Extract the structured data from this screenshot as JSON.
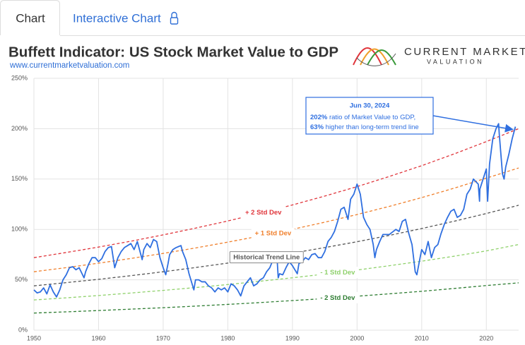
{
  "tabs": [
    "Chart",
    "Interactive Chart"
  ],
  "logo": {
    "line1": "CURRENT MARKET",
    "line2": "VALUATION"
  },
  "chart_data": {
    "type": "line",
    "title": "Buffett Indicator: US Stock Market Value to GDP",
    "subtitle": "www.currentmarketvaluation.com",
    "xlim": [
      1950,
      2025
    ],
    "xticks": [
      1950,
      1960,
      1970,
      1980,
      1990,
      2000,
      2010,
      2020
    ],
    "ylim": [
      0,
      250
    ],
    "yticks": [
      {
        "value": 0,
        "label": "0%"
      },
      {
        "value": 50,
        "label": "50%"
      },
      {
        "value": 100,
        "label": "100%"
      },
      {
        "value": 150,
        "label": "150%"
      },
      {
        "value": 200,
        "label": "200%"
      },
      {
        "value": 250,
        "label": "250%"
      }
    ],
    "grid": true,
    "series": [
      {
        "name": "+ 2 Std Dev",
        "color": "#e0353b",
        "dashed": true,
        "x": [
          1950,
          1955,
          1960,
          1965,
          1970,
          1975,
          1980,
          1985,
          1990,
          1995,
          2000,
          2005,
          2010,
          2015,
          2020,
          2025
        ],
        "values": [
          72,
          77.1,
          82.5,
          88.3,
          94.6,
          101.3,
          108.4,
          116.1,
          124.3,
          133.1,
          142.5,
          152.6,
          163.3,
          174.9,
          187.2,
          200
        ]
      },
      {
        "name": "+ 1 Std Dev",
        "color": "#f07f2b",
        "dashed": true,
        "x": [
          1950,
          1955,
          1960,
          1965,
          1970,
          1975,
          1980,
          1985,
          1990,
          1995,
          2000,
          2005,
          2010,
          2015,
          2020,
          2025
        ],
        "values": [
          58,
          62.1,
          66.5,
          71.2,
          76.2,
          81.6,
          87.4,
          93.5,
          100.1,
          107.2,
          114.8,
          122.9,
          131.6,
          140.9,
          150.9,
          161
        ]
      },
      {
        "name": "Historical Trend Line",
        "color": "#555555",
        "dashed": true,
        "x": [
          1950,
          1955,
          1960,
          1965,
          1970,
          1975,
          1980,
          1985,
          1990,
          1995,
          2000,
          2005,
          2010,
          2015,
          2020,
          2025
        ],
        "values": [
          44,
          47.2,
          50.5,
          54.1,
          58.0,
          62.2,
          66.6,
          71.4,
          76.5,
          82.0,
          87.8,
          94.1,
          100.9,
          108.1,
          115.8,
          124
        ]
      },
      {
        "name": "- 1 Std Dev",
        "color": "#8fd16b",
        "dashed": true,
        "x": [
          1950,
          1955,
          1960,
          1965,
          1970,
          1975,
          1980,
          1985,
          1990,
          1995,
          2000,
          2005,
          2010,
          2015,
          2020,
          2025
        ],
        "values": [
          30,
          32.1,
          34.4,
          36.9,
          39.5,
          42.3,
          45.3,
          48.6,
          52.0,
          55.7,
          59.7,
          64.0,
          68.5,
          73.4,
          78.7,
          85
        ]
      },
      {
        "name": "- 2 Std Dev",
        "color": "#2e7d32",
        "dashed": true,
        "x": [
          1950,
          1955,
          1960,
          1965,
          1970,
          1975,
          1980,
          1985,
          1990,
          1995,
          2000,
          2005,
          2010,
          2015,
          2020,
          2025
        ],
        "values": [
          17,
          18.2,
          19.5,
          20.9,
          22.3,
          23.9,
          25.6,
          27.4,
          29.4,
          31.4,
          33.7,
          36.1,
          38.6,
          41.4,
          44.3,
          47
        ]
      },
      {
        "color": "#2f6fe0",
        "dashed": false,
        "x": [
          1950,
          1950.5,
          1951,
          1951.5,
          1952,
          1952.5,
          1953,
          1953.5,
          1954,
          1954.5,
          1955,
          1955.5,
          1956,
          1956.5,
          1957,
          1957.75,
          1958,
          1958.5,
          1959,
          1959.5,
          1960,
          1960.5,
          1961,
          1961.5,
          1962,
          1962.5,
          1963,
          1963.5,
          1964,
          1964.5,
          1965,
          1965.5,
          1966,
          1966.75,
          1967,
          1967.5,
          1968,
          1968.5,
          1969,
          1969.5,
          1970,
          1970.4,
          1970.75,
          1971,
          1971.5,
          1972,
          1972.75,
          1973,
          1973.5,
          1974,
          1974.75,
          1975,
          1975.5,
          1976,
          1976.5,
          1977,
          1977.5,
          1978,
          1978.5,
          1979,
          1979.5,
          1980,
          1980.5,
          1981,
          1981.5,
          1982,
          1982.5,
          1983,
          1983.5,
          1984,
          1984.5,
          1985,
          1985.5,
          1986,
          1986.5,
          1987,
          1987.6,
          1987.8,
          1988,
          1988.5,
          1989,
          1989.5,
          1990,
          1990.75,
          1991,
          1991.5,
          1992,
          1992.5,
          1993,
          1993.5,
          1994,
          1994.5,
          1995,
          1995.5,
          1996,
          1996.5,
          1997,
          1997.5,
          1998,
          1998.6,
          1999,
          1999.5,
          2000,
          2000.5,
          2001,
          2001.5,
          2002,
          2002.5,
          2002.75,
          2003,
          2003.5,
          2004,
          2005,
          2006,
          2006.5,
          2007,
          2007.5,
          2008,
          2008.5,
          2009,
          2009.25,
          2009.75,
          2010,
          2010.5,
          2011,
          2011.5,
          2012,
          2012.5,
          2013,
          2013.5,
          2014,
          2014.5,
          2015,
          2015.5,
          2016,
          2016.5,
          2017,
          2017.5,
          2018,
          2018.75,
          2018.95,
          2019,
          2019.5,
          2020,
          2020.2,
          2020.5,
          2021,
          2021.5,
          2021.9,
          2022,
          2022.5,
          2022.75,
          2023,
          2023.5,
          2024,
          2024.5
        ],
        "values": [
          40,
          37,
          38,
          42,
          36,
          45,
          38,
          33,
          40,
          50,
          55,
          62,
          63,
          60,
          62,
          52,
          58,
          66,
          72,
          72,
          68,
          71,
          78,
          82,
          83,
          62,
          72,
          78,
          82,
          84,
          86,
          80,
          88,
          70,
          80,
          86,
          82,
          90,
          88,
          72,
          62,
          55,
          66,
          75,
          80,
          82,
          84,
          78,
          70,
          56,
          40,
          50,
          50,
          48,
          48,
          44,
          42,
          38,
          42,
          40,
          42,
          38,
          46,
          44,
          40,
          34,
          44,
          48,
          52,
          44,
          46,
          50,
          52,
          58,
          62,
          70,
          74,
          52,
          56,
          55,
          62,
          68,
          64,
          56,
          66,
          68,
          72,
          70,
          75,
          76,
          72,
          72,
          78,
          88,
          92,
          98,
          108,
          120,
          122,
          110,
          130,
          135,
          145,
          135,
          112,
          105,
          100,
          85,
          72,
          80,
          88,
          95,
          95,
          100,
          98,
          108,
          110,
          96,
          85,
          58,
          55,
          72,
          80,
          75,
          88,
          72,
          82,
          85,
          96,
          105,
          112,
          118,
          120,
          112,
          114,
          120,
          135,
          140,
          150,
          145,
          128,
          140,
          150,
          160,
          128,
          165,
          190,
          200,
          205,
          195,
          155,
          150,
          162,
          175,
          190,
          202
        ]
      }
    ],
    "callout": {
      "title": "Jun 30, 2024",
      "line1_bold": "202%",
      "line1": " ratio of Market Value to GDP,",
      "line2_bold": "63%",
      "line2": " higher than long-term trend line"
    }
  }
}
